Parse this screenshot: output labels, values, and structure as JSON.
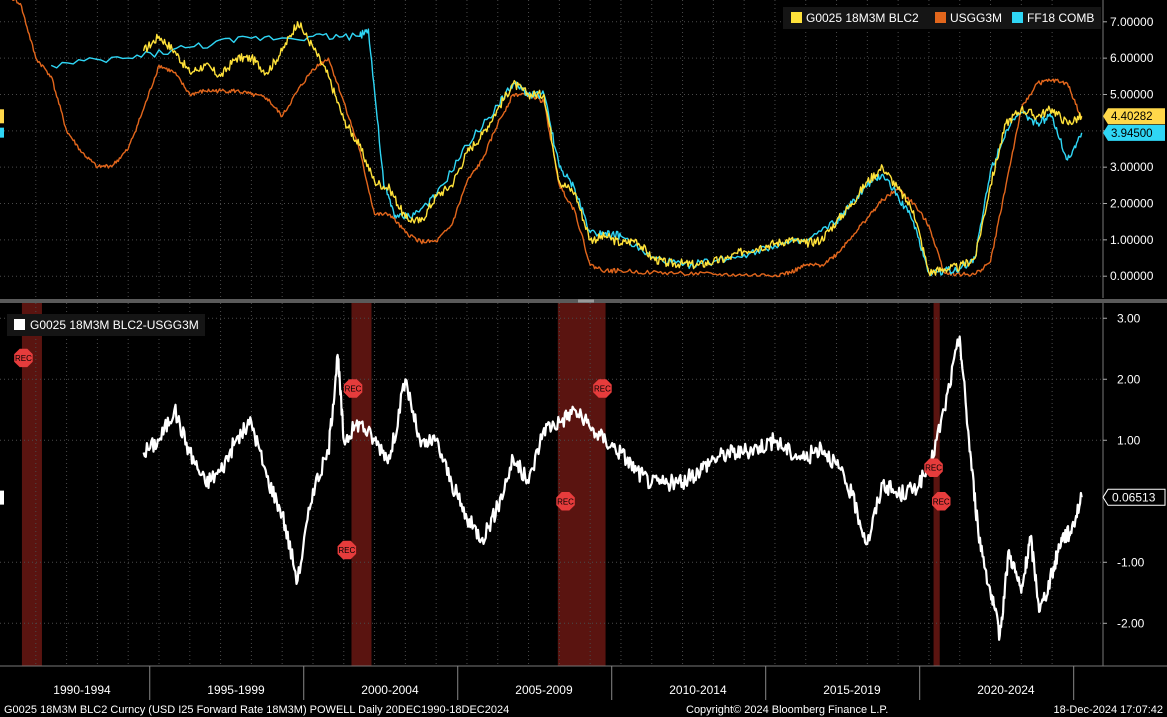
{
  "chart_data": [
    {
      "type": "line",
      "panel": "top",
      "ylim": [
        -0.6,
        7.6
      ],
      "yticks": [
        "7.00000",
        "6.00000",
        "5.00000",
        "4.00000",
        "3.00000",
        "2.00000",
        "1.00000",
        "0.00000"
      ],
      "ytick_values": [
        7,
        6,
        5,
        4,
        3,
        2,
        1,
        0
      ],
      "grid": true,
      "legend_position": "top-right",
      "last_value_tags": [
        {
          "text": "4.40282",
          "value": 4.40282,
          "color": "#ffd84a"
        },
        {
          "text": "3.94500",
          "value": 3.945,
          "color": "#2fd6f5"
        }
      ],
      "series": [
        {
          "name": "G0025 18M3M BLC2",
          "color": "#ffe23a",
          "x": [
            1994.5,
            1995.0,
            1995.5,
            1996.0,
            1996.5,
            1997.0,
            1997.5,
            1998.0,
            1998.5,
            1999.0,
            1999.5,
            2000.0,
            2000.5,
            2001.0,
            2001.5,
            2002.0,
            2002.5,
            2003.0,
            2003.5,
            2004.0,
            2004.5,
            2005.0,
            2005.5,
            2006.0,
            2006.5,
            2007.0,
            2007.5,
            2008.0,
            2008.5,
            2009.0,
            2009.5,
            2010.0,
            2010.5,
            2011.0,
            2011.5,
            2012.0,
            2012.5,
            2013.0,
            2013.5,
            2014.0,
            2014.5,
            2015.0,
            2015.5,
            2016.0,
            2016.5,
            2017.0,
            2017.5,
            2018.0,
            2018.5,
            2019.0,
            2019.5,
            2020.0,
            2020.5,
            2021.0,
            2021.5,
            2022.0,
            2022.5,
            2023.0,
            2023.5,
            2024.0,
            2024.5,
            2024.96
          ],
          "y": [
            6.2,
            6.6,
            6.2,
            5.6,
            5.8,
            5.5,
            6.0,
            6.0,
            5.6,
            6.2,
            7.0,
            6.3,
            5.5,
            4.3,
            3.6,
            2.6,
            2.4,
            1.6,
            1.5,
            2.2,
            2.5,
            3.4,
            3.9,
            4.6,
            5.3,
            5.0,
            5.0,
            2.6,
            2.3,
            1.0,
            1.1,
            0.9,
            1.0,
            0.5,
            0.35,
            0.35,
            0.3,
            0.4,
            0.5,
            0.7,
            0.8,
            0.9,
            1.0,
            0.9,
            1.0,
            1.5,
            2.0,
            2.6,
            3.0,
            2.4,
            1.8,
            0.1,
            0.2,
            0.25,
            0.5,
            2.5,
            4.2,
            4.6,
            4.4,
            4.6,
            4.2,
            4.40282
          ]
        },
        {
          "name": "USGG3M",
          "color": "#e2661c",
          "x": [
            1990.0,
            1990.5,
            1991.0,
            1991.5,
            1992.0,
            1992.5,
            1993.0,
            1993.5,
            1994.0,
            1994.5,
            1995.0,
            1995.5,
            1996.0,
            1996.5,
            1997.0,
            1997.5,
            1998.0,
            1998.5,
            1999.0,
            1999.5,
            2000.0,
            2000.5,
            2001.0,
            2001.5,
            2002.0,
            2002.5,
            2003.0,
            2003.5,
            2004.0,
            2004.5,
            2005.0,
            2005.5,
            2006.0,
            2006.5,
            2007.0,
            2007.5,
            2008.0,
            2008.5,
            2009.0,
            2009.5,
            2010.0,
            2011.0,
            2012.0,
            2013.0,
            2014.0,
            2015.0,
            2015.5,
            2016.0,
            2016.5,
            2017.0,
            2017.5,
            2018.0,
            2018.5,
            2019.0,
            2019.5,
            2020.0,
            2020.5,
            2021.0,
            2021.5,
            2022.0,
            2022.5,
            2023.0,
            2023.5,
            2024.0,
            2024.5,
            2024.96
          ],
          "y": [
            7.8,
            7.5,
            6.0,
            5.5,
            4.0,
            3.4,
            3.0,
            3.05,
            3.5,
            4.6,
            5.8,
            5.6,
            5.0,
            5.1,
            5.1,
            5.1,
            5.0,
            4.9,
            4.4,
            5.1,
            5.7,
            6.0,
            4.8,
            3.5,
            1.7,
            1.7,
            1.2,
            0.95,
            0.95,
            1.4,
            2.6,
            3.2,
            4.2,
            5.0,
            5.0,
            4.8,
            2.5,
            1.8,
            0.3,
            0.15,
            0.15,
            0.1,
            0.08,
            0.05,
            0.03,
            0.03,
            0.1,
            0.3,
            0.3,
            0.6,
            1.1,
            1.6,
            2.1,
            2.4,
            2.0,
            1.4,
            0.1,
            0.05,
            0.05,
            0.4,
            2.5,
            4.6,
            5.3,
            5.4,
            5.3,
            4.34
          ]
        },
        {
          "name": "FF18 COMB",
          "color": "#2fd6f5",
          "x": [
            1991.5,
            1994.0,
            1996.0,
            1998.0,
            2000.0,
            2001.5,
            2001.8,
            2002.3,
            2002.7,
            2003.3,
            2004.0,
            2005.0,
            2006.0,
            2006.5,
            2007.0,
            2007.5,
            2008.0,
            2008.5,
            2009.0,
            2009.5,
            2010.0,
            2011.0,
            2012.0,
            2013.0,
            2014.0,
            2015.0,
            2016.0,
            2017.0,
            2017.5,
            2018.0,
            2018.5,
            2019.0,
            2019.5,
            2020.0,
            2020.5,
            2021.0,
            2021.5,
            2022.0,
            2022.5,
            2023.0,
            2023.5,
            2024.0,
            2024.5,
            2024.96
          ],
          "y": [
            5.8,
            6.0,
            6.3,
            6.55,
            6.6,
            6.6,
            6.8,
            2.5,
            1.6,
            1.7,
            2.2,
            3.6,
            4.7,
            5.3,
            5.0,
            5.0,
            3.0,
            2.4,
            1.2,
            1.2,
            1.1,
            0.5,
            0.3,
            0.4,
            0.6,
            0.85,
            0.95,
            1.5,
            2.0,
            2.5,
            2.8,
            2.2,
            1.5,
            0.1,
            0.15,
            0.2,
            0.5,
            2.9,
            4.0,
            4.5,
            4.2,
            4.4,
            3.2,
            3.945
          ]
        }
      ]
    },
    {
      "type": "line",
      "panel": "bottom",
      "ylim": [
        -2.7,
        3.25
      ],
      "yticks": [
        "3.00",
        "2.00",
        "1.00",
        "-1.00",
        "-2.00"
      ],
      "ytick_values": [
        3,
        2,
        1,
        -1,
        -2
      ],
      "grid": true,
      "legend_position": "top-left",
      "last_value_tag": {
        "text": "0.06513",
        "value": 0.06513,
        "color": "#ffffff"
      },
      "x_tick_labels": [
        "1990-1994",
        "1995-1999",
        "2000-2004",
        "2005-2009",
        "2010-2014",
        "2015-2019",
        "2020-2024"
      ],
      "recession_shading": [
        [
          1990.55,
          1991.2
        ],
        [
          2001.25,
          2001.9
        ],
        [
          2007.95,
          2009.5
        ],
        [
          2020.15,
          2020.35
        ]
      ],
      "rec_markers": [
        {
          "label": "REC",
          "x": 1990.6,
          "y": 2.35
        },
        {
          "label": "REC",
          "x": 2001.3,
          "y": 1.85
        },
        {
          "label": "REC",
          "x": 2001.1,
          "y": -0.8
        },
        {
          "label": "REC",
          "x": 2008.2,
          "y": 0.0
        },
        {
          "label": "REC",
          "x": 2009.4,
          "y": 1.85
        },
        {
          "label": "REC",
          "x": 2020.15,
          "y": 0.55
        },
        {
          "label": "REC",
          "x": 2020.4,
          "y": 0.0
        }
      ],
      "series": [
        {
          "name": "G0025 18M3M BLC2-USGG3M",
          "color": "#ffffff",
          "x": [
            1994.5,
            1995.0,
            1995.5,
            1996.0,
            1996.5,
            1997.0,
            1997.5,
            1998.0,
            1998.5,
            1999.0,
            1999.5,
            2000.0,
            2000.5,
            2000.8,
            2001.0,
            2001.5,
            2002.0,
            2002.5,
            2003.0,
            2003.5,
            2004.0,
            2004.5,
            2005.0,
            2005.5,
            2006.0,
            2006.5,
            2007.0,
            2007.5,
            2008.0,
            2008.5,
            2009.0,
            2009.5,
            2010.0,
            2010.5,
            2011.0,
            2011.5,
            2012.0,
            2012.5,
            2013.0,
            2013.5,
            2014.0,
            2014.5,
            2015.0,
            2015.5,
            2016.0,
            2016.5,
            2017.0,
            2017.5,
            2018.0,
            2018.5,
            2019.0,
            2019.5,
            2020.0,
            2020.5,
            2021.0,
            2021.3,
            2021.6,
            2022.0,
            2022.3,
            2022.6,
            2023.0,
            2023.3,
            2023.6,
            2024.0,
            2024.3,
            2024.6,
            2024.96
          ],
          "y": [
            0.8,
            1.0,
            1.5,
            0.8,
            0.3,
            0.5,
            1.0,
            1.3,
            0.4,
            -0.2,
            -1.3,
            0.2,
            0.8,
            2.4,
            1.0,
            1.3,
            1.0,
            0.7,
            2.0,
            0.9,
            1.0,
            0.3,
            -0.3,
            -0.6,
            -0.1,
            0.7,
            0.3,
            1.2,
            1.3,
            1.5,
            1.2,
            1.0,
            0.8,
            0.5,
            0.3,
            0.3,
            0.3,
            0.5,
            0.7,
            0.8,
            0.8,
            0.9,
            1.0,
            0.8,
            0.7,
            0.9,
            0.6,
            0.1,
            -0.7,
            0.3,
            0.1,
            0.2,
            0.5,
            1.5,
            2.7,
            1.0,
            -0.5,
            -1.5,
            -2.2,
            -0.8,
            -1.5,
            -0.6,
            -1.8,
            -1.2,
            -0.6,
            -0.5,
            0.06513
          ]
        }
      ]
    }
  ],
  "legend_top": {
    "items": [
      {
        "label": "G0025 18M3M BLC2",
        "color": "#ffe23a"
      },
      {
        "label": "USGG3M",
        "color": "#e2661c"
      },
      {
        "label": "FF18 COMB",
        "color": "#2fd6f5"
      }
    ]
  },
  "legend_bottom": {
    "items": [
      {
        "label": "G0025 18M3M BLC2-USGG3M",
        "color": "#ffffff"
      }
    ]
  },
  "footer": {
    "left": "G0025 18M3M BLC2 Curncy (USD I25 Forward Rate 18M3M) POWELL  Daily 20DEC1990-18DEC2024",
    "center": "Copyright© 2024 Bloomberg Finance L.P.",
    "right": "18-Dec-2024 17:07:42"
  },
  "colors": {
    "background": "#000000",
    "grid": "#4a4a4a",
    "recession": "#5a1410",
    "rec_marker": "#e63c3c"
  }
}
